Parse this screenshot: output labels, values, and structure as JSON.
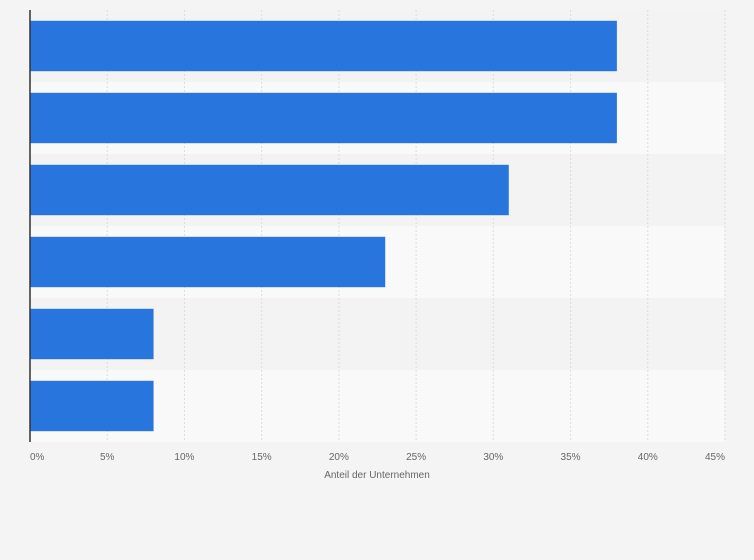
{
  "chart_data": {
    "type": "bar",
    "orientation": "horizontal",
    "categories": [
      "",
      "",
      "",
      "",
      "",
      ""
    ],
    "values": [
      38,
      38,
      31,
      23,
      8,
      8
    ],
    "xlabel": "Anteil der Unternehmen",
    "ylabel": "",
    "xlim": [
      0,
      45
    ],
    "x_ticks": [
      0,
      5,
      10,
      15,
      20,
      25,
      30,
      35,
      40,
      45
    ],
    "x_tick_labels": [
      "0%",
      "5%",
      "10%",
      "15%",
      "20%",
      "25%",
      "30%",
      "35%",
      "40%",
      "45%"
    ],
    "grid": true,
    "bar_color": "#2876dd",
    "band_colors": [
      "#f3f3f3",
      "#f9f9f9"
    ],
    "gridline_color": "#dcdcdc",
    "axis_color": "#333333",
    "tick_label_color": "#666666"
  }
}
